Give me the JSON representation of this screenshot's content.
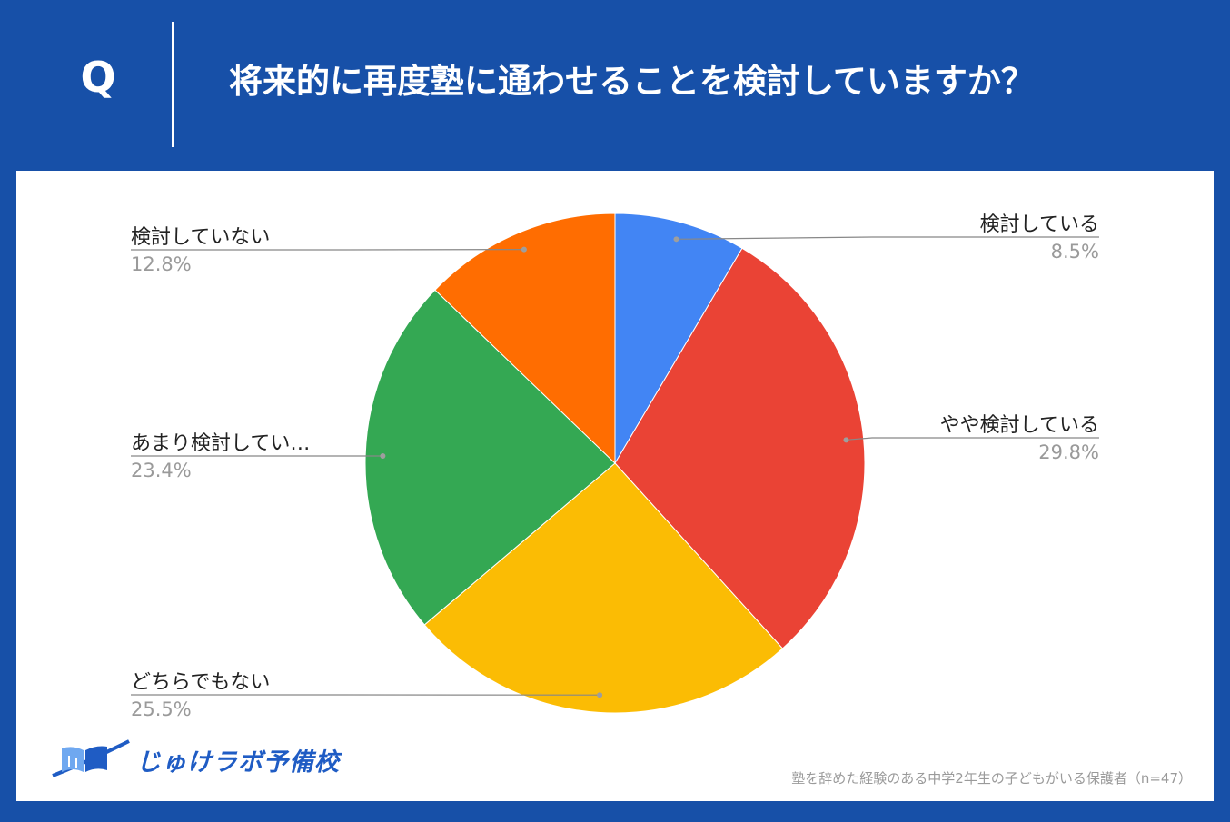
{
  "header": {
    "q_label": "Q",
    "question": "将来的に再度塾に通わせることを検討していますか？"
  },
  "colors": {
    "background": "#1750a8",
    "panel": "#ffffff",
    "label_text": "#222222",
    "percent_text": "#9a9a9a",
    "leader_line": "#888888",
    "logo_blue": "#1f5cc4"
  },
  "chart_data": {
    "type": "pie",
    "title": "",
    "start_angle_deg": 0,
    "direction": "clockwise",
    "slices": [
      {
        "label": "検討している",
        "value": 8.5,
        "value_label": "8.5%",
        "color": "#4285f4",
        "label_side": "right"
      },
      {
        "label": "やや検討している",
        "value": 29.8,
        "value_label": "29.8%",
        "color": "#ea4335",
        "label_side": "right"
      },
      {
        "label": "どちらでもない",
        "value": 25.5,
        "value_label": "25.5%",
        "color": "#fbbc04",
        "label_side": "left"
      },
      {
        "label": "あまり検討してい…",
        "value": 23.4,
        "value_label": "23.4%",
        "color": "#34a853",
        "label_side": "left"
      },
      {
        "label": "検討していない",
        "value": 12.8,
        "value_label": "12.8%",
        "color": "#ff6d01",
        "label_side": "left"
      }
    ]
  },
  "logo": {
    "text": "じゅけラボ予備校",
    "icon": "open-book-swoosh-icon"
  },
  "footnote": "塾を辞めた経験のある中学2年生の子どもがいる保護者（n=47）"
}
